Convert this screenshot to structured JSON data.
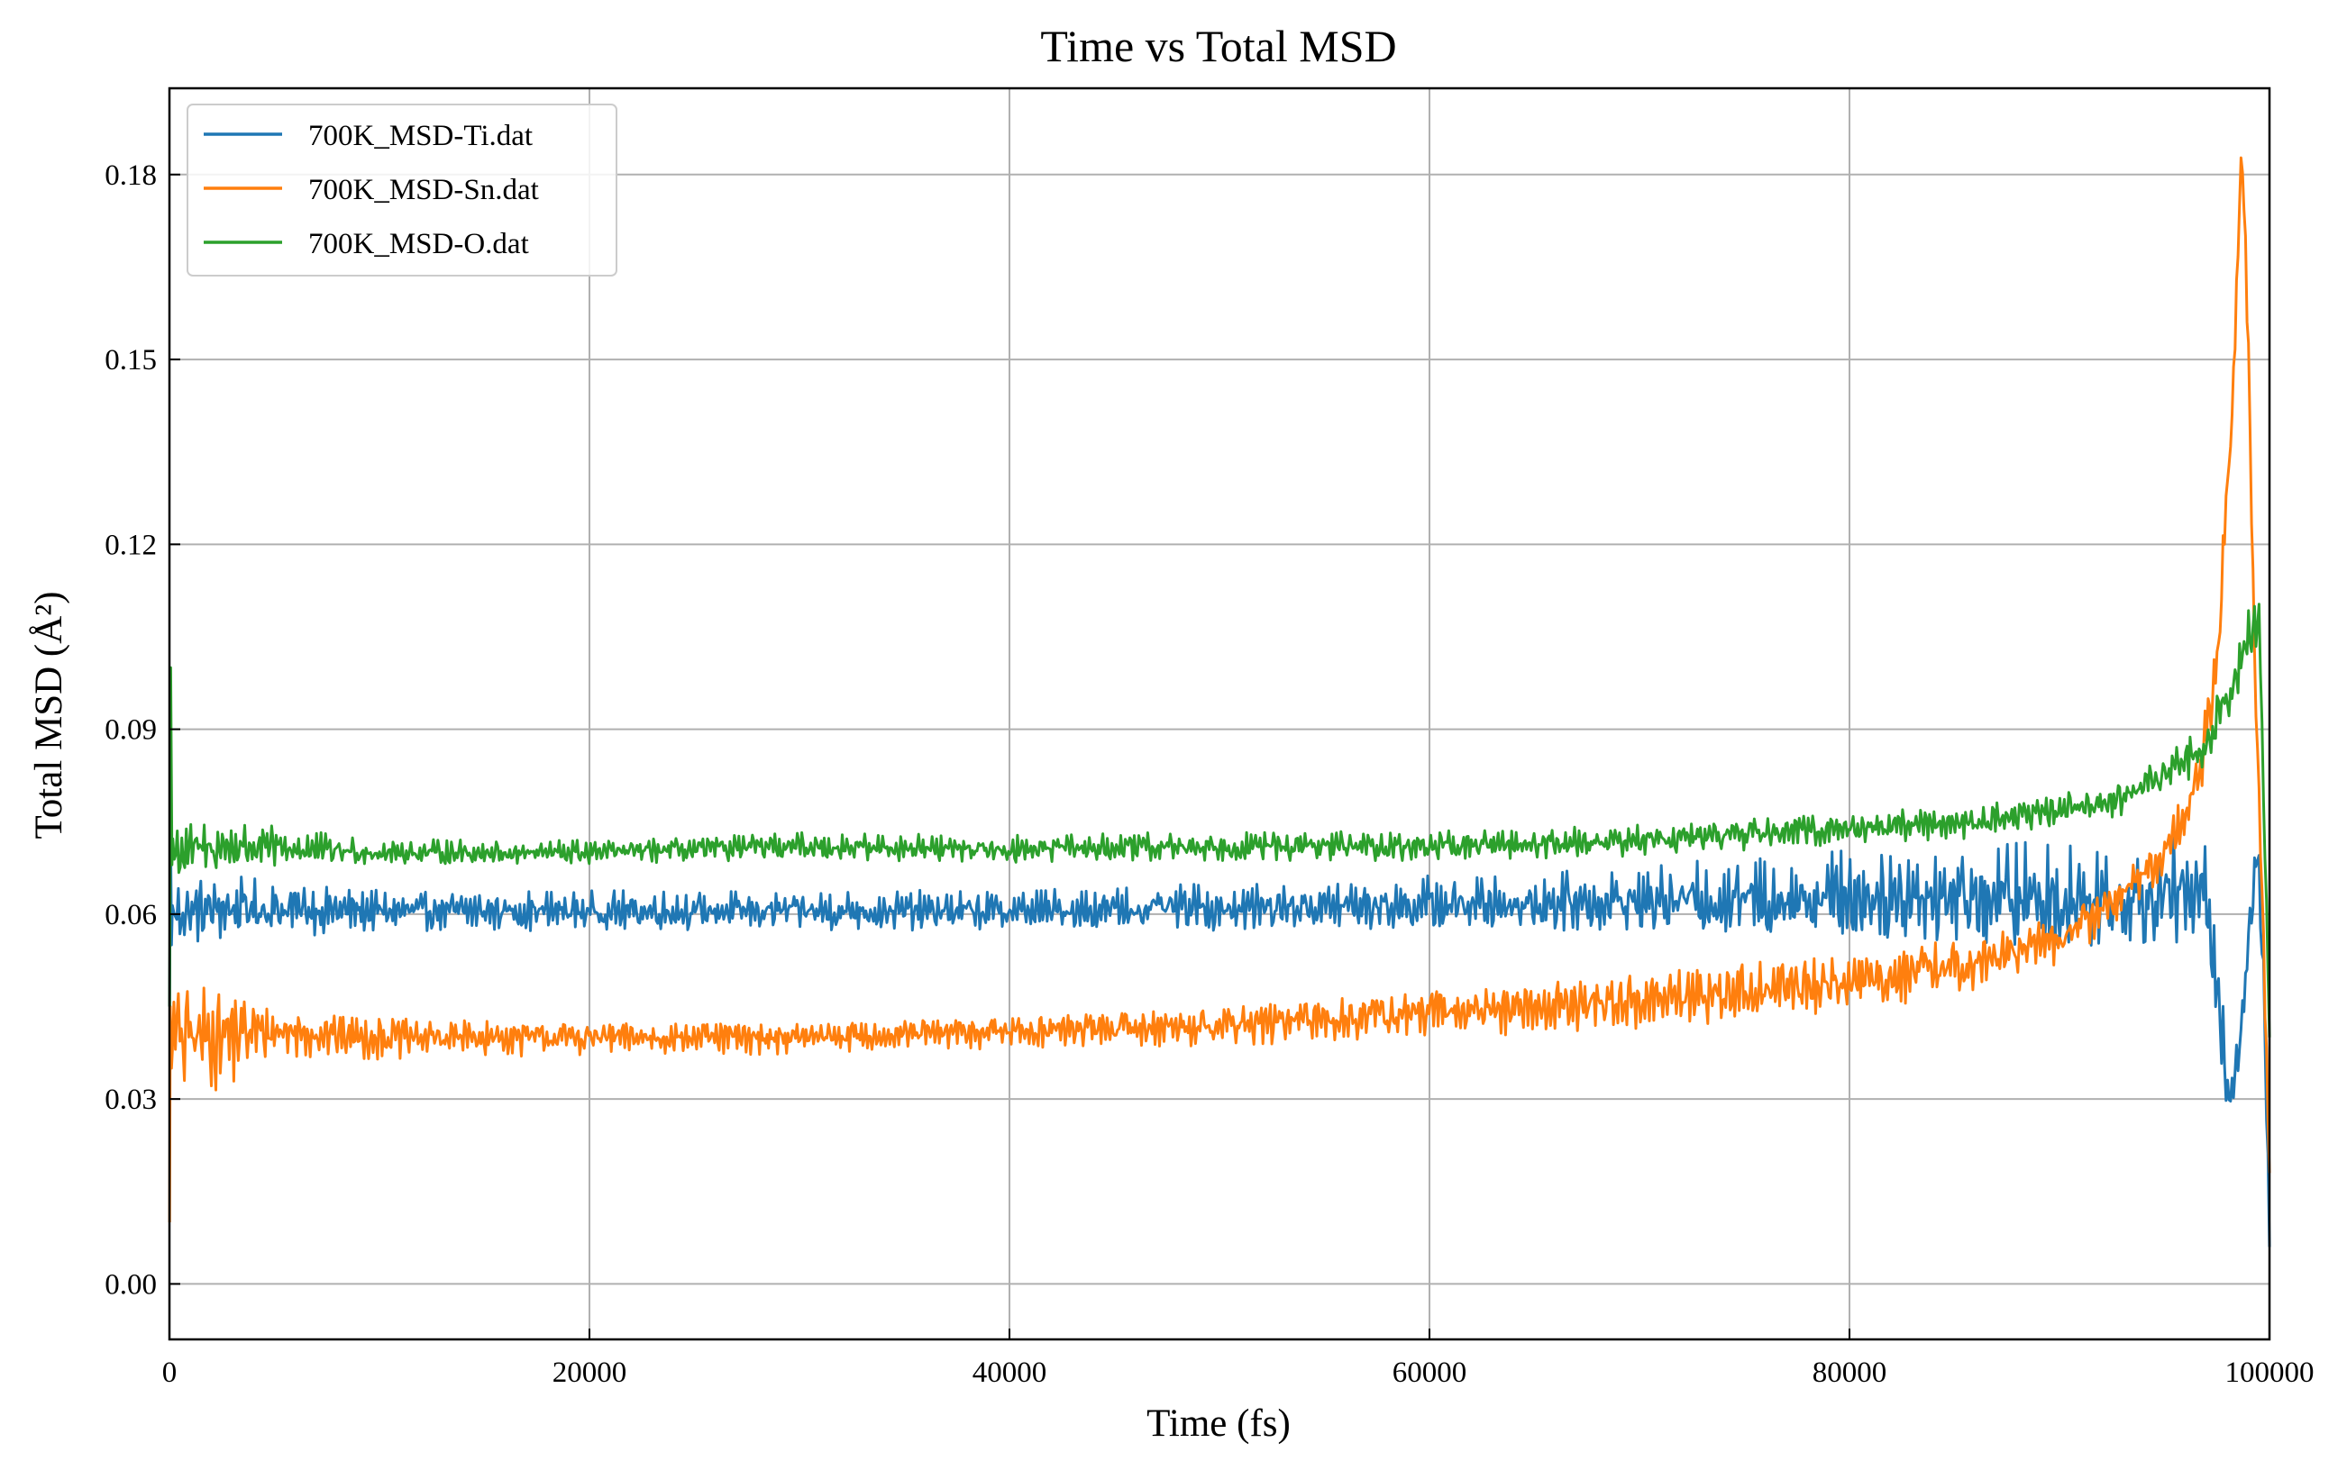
{
  "chart_data": {
    "type": "line",
    "title": "Time vs Total MSD",
    "xlabel": "Time (fs)",
    "ylabel": "Total MSD (Å²)",
    "xlim": [
      0,
      100000
    ],
    "ylim": [
      -0.009,
      0.194
    ],
    "xticks": [
      0,
      20000,
      40000,
      60000,
      80000,
      100000
    ],
    "xtick_labels": [
      "0",
      "20000",
      "40000",
      "60000",
      "80000",
      "100000"
    ],
    "yticks": [
      0.0,
      0.03,
      0.06,
      0.09,
      0.12,
      0.15,
      0.18
    ],
    "ytick_labels": [
      "0.00",
      "0.03",
      "0.06",
      "0.09",
      "0.12",
      "0.15",
      "0.18"
    ],
    "grid": true,
    "legend_position": "upper-left",
    "series": [
      {
        "name": "700K_MSD-Ti.dat",
        "color": "#1f77b4",
        "trend": [
          [
            0,
            0.06
          ],
          [
            3000,
            0.061
          ],
          [
            10000,
            0.0605
          ],
          [
            20000,
            0.0605
          ],
          [
            30000,
            0.0605
          ],
          [
            40000,
            0.0605
          ],
          [
            50000,
            0.061
          ],
          [
            60000,
            0.0615
          ],
          [
            70000,
            0.062
          ],
          [
            80000,
            0.063
          ],
          [
            86000,
            0.063
          ],
          [
            90000,
            0.062
          ],
          [
            94000,
            0.063
          ],
          [
            97000,
            0.063
          ],
          [
            97500,
            0.05
          ],
          [
            98000,
            0.03
          ],
          [
            98500,
            0.036
          ],
          [
            99000,
            0.055
          ],
          [
            99400,
            0.07
          ],
          [
            99700,
            0.055
          ],
          [
            100000,
            0.006
          ]
        ],
        "amplitude": [
          [
            0,
            0.004
          ],
          [
            3000,
            0.004
          ],
          [
            10000,
            0.0025
          ],
          [
            40000,
            0.0025
          ],
          [
            60000,
            0.0035
          ],
          [
            70000,
            0.004
          ],
          [
            80000,
            0.006
          ],
          [
            86000,
            0.007
          ],
          [
            94000,
            0.007
          ],
          [
            97000,
            0.008
          ],
          [
            98000,
            0.004
          ],
          [
            100000,
            0.004
          ]
        ],
        "spikes": [
          [
            10,
            0.045
          ],
          [
            50,
            0.075
          ],
          [
            100,
            0.055
          ]
        ]
      },
      {
        "name": "700K_MSD-Sn.dat",
        "color": "#ff7f0e",
        "trend": [
          [
            0,
            0.04
          ],
          [
            5000,
            0.041
          ],
          [
            10000,
            0.04
          ],
          [
            20000,
            0.04
          ],
          [
            30000,
            0.04
          ],
          [
            40000,
            0.041
          ],
          [
            50000,
            0.042
          ],
          [
            60000,
            0.044
          ],
          [
            70000,
            0.046
          ],
          [
            80000,
            0.049
          ],
          [
            86000,
            0.052
          ],
          [
            90000,
            0.056
          ],
          [
            93000,
            0.063
          ],
          [
            95000,
            0.07
          ],
          [
            96500,
            0.08
          ],
          [
            97500,
            0.1
          ],
          [
            98200,
            0.14
          ],
          [
            98700,
            0.185
          ],
          [
            99000,
            0.15
          ],
          [
            99300,
            0.1
          ],
          [
            99600,
            0.07
          ],
          [
            100000,
            0.018
          ]
        ],
        "amplitude": [
          [
            0,
            0.008
          ],
          [
            3000,
            0.006
          ],
          [
            5000,
            0.003
          ],
          [
            20000,
            0.002
          ],
          [
            40000,
            0.002
          ],
          [
            60000,
            0.003
          ],
          [
            80000,
            0.004
          ],
          [
            90000,
            0.003
          ],
          [
            96000,
            0.003
          ],
          [
            98000,
            0.005
          ],
          [
            100000,
            0.002
          ]
        ],
        "spikes": [
          [
            10,
            0.01
          ],
          [
            40,
            0.045
          ],
          [
            100,
            0.035
          ]
        ]
      },
      {
        "name": "700K_MSD-O.dat",
        "color": "#2ca02c",
        "trend": [
          [
            0,
            0.07
          ],
          [
            3000,
            0.071
          ],
          [
            10000,
            0.07
          ],
          [
            20000,
            0.07
          ],
          [
            30000,
            0.071
          ],
          [
            40000,
            0.0705
          ],
          [
            50000,
            0.071
          ],
          [
            60000,
            0.071
          ],
          [
            70000,
            0.072
          ],
          [
            80000,
            0.074
          ],
          [
            86000,
            0.075
          ],
          [
            90000,
            0.077
          ],
          [
            93000,
            0.079
          ],
          [
            95000,
            0.082
          ],
          [
            97000,
            0.088
          ],
          [
            98000,
            0.095
          ],
          [
            99000,
            0.105
          ],
          [
            99500,
            0.108
          ],
          [
            100000,
            0.04
          ]
        ],
        "amplitude": [
          [
            0,
            0.004
          ],
          [
            3000,
            0.003
          ],
          [
            10000,
            0.0015
          ],
          [
            50000,
            0.0018
          ],
          [
            80000,
            0.002
          ],
          [
            90000,
            0.002
          ],
          [
            97000,
            0.003
          ],
          [
            100000,
            0.004
          ]
        ],
        "spikes": [
          [
            10,
            0.045
          ],
          [
            60,
            0.1
          ],
          [
            120,
            0.068
          ]
        ]
      }
    ]
  }
}
